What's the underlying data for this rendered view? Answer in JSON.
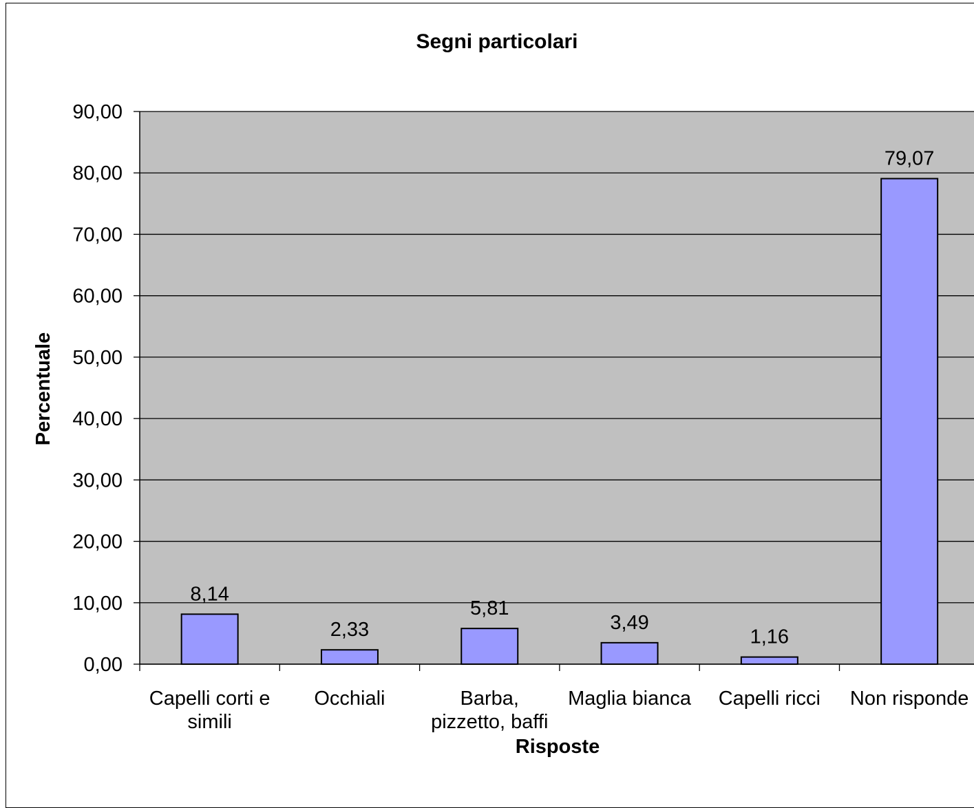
{
  "chart_data": {
    "type": "bar",
    "title": "Segni particolari",
    "xlabel": "Risposte",
    "ylabel": "Percentuale",
    "categories": [
      [
        "Capelli corti e",
        "simili"
      ],
      [
        "Occhiali"
      ],
      [
        "Barba,",
        "pizzetto, baffi"
      ],
      [
        "Maglia bianca"
      ],
      [
        "Capelli ricci"
      ],
      [
        "Non risponde"
      ]
    ],
    "values": [
      8.14,
      2.33,
      5.81,
      3.49,
      1.16,
      79.07
    ],
    "data_labels": [
      "8,14",
      "2,33",
      "5,81",
      "3,49",
      "1,16",
      "79,07"
    ],
    "ylim": [
      0,
      90
    ],
    "yticks": [
      0,
      10,
      20,
      30,
      40,
      50,
      60,
      70,
      80,
      90
    ],
    "ytick_labels": [
      "0,00",
      "10,00",
      "20,00",
      "30,00",
      "40,00",
      "50,00",
      "60,00",
      "70,00",
      "80,00",
      "90,00"
    ],
    "grid": true,
    "legend": "none",
    "colors": {
      "bar_fill": "#9999ff",
      "plot_background": "#c0c0c0",
      "gridline": "#000000"
    }
  }
}
